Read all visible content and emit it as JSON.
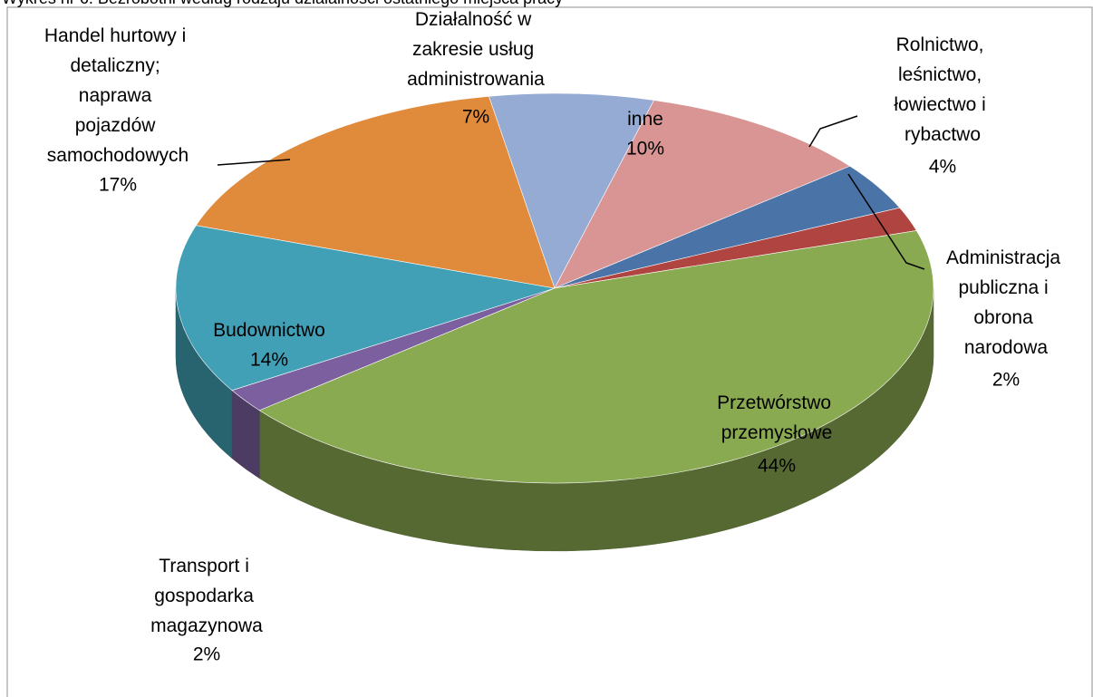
{
  "chart_data": {
    "type": "pie",
    "title": "Wykres nr 6. Bezrobotni według rodzaju działalności ostatniego miejsca pracy",
    "categories": [
      "Działalność w zakresie usług administrowania",
      "inne",
      "Rolnictwo, leśnictwo, łowiectwo i rybactwo",
      "Administracja publiczna i obrona narodowa",
      "Przetwórstwo przemysłowe",
      "Transport i gospodarka magazynowa",
      "Budownictwo",
      "Handel hurtowy i detaliczny; naprawa pojazdów samochodowych"
    ],
    "values": [
      7,
      10,
      4,
      2,
      44,
      2,
      14,
      17
    ],
    "value_labels": [
      "7%",
      "10%",
      "4%",
      "2%",
      "44%",
      "2%",
      "14%",
      "17%"
    ],
    "colors": [
      "#95abd4",
      "#d99594",
      "#4a73a8",
      "#b04441",
      "#8aaa52",
      "#7b5f9e",
      "#41a0b5",
      "#e08a3c"
    ]
  }
}
